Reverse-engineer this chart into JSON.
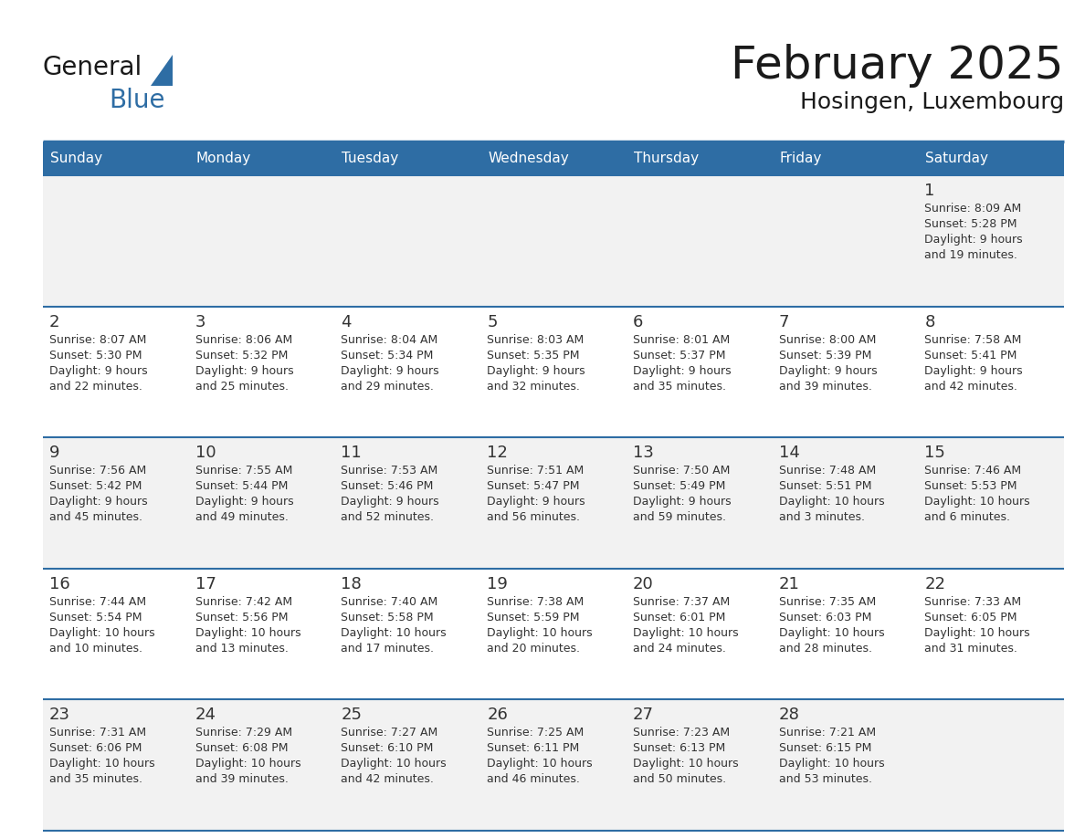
{
  "title": "February 2025",
  "subtitle": "Hosingen, Luxembourg",
  "days_of_week": [
    "Sunday",
    "Monday",
    "Tuesday",
    "Wednesday",
    "Thursday",
    "Friday",
    "Saturday"
  ],
  "header_bg": "#2E6DA4",
  "header_text": "#FFFFFF",
  "cell_bg_odd": "#F2F2F2",
  "cell_bg_even": "#FFFFFF",
  "day_number_color": "#333333",
  "text_color": "#333333",
  "line_color": "#2E6DA4",
  "calendar_data": [
    [
      null,
      null,
      null,
      null,
      null,
      null,
      1
    ],
    [
      2,
      3,
      4,
      5,
      6,
      7,
      8
    ],
    [
      9,
      10,
      11,
      12,
      13,
      14,
      15
    ],
    [
      16,
      17,
      18,
      19,
      20,
      21,
      22
    ],
    [
      23,
      24,
      25,
      26,
      27,
      28,
      null
    ]
  ],
  "cell_info": {
    "1": {
      "sunrise": "8:09 AM",
      "sunset": "5:28 PM",
      "daylight_h": "9 hours",
      "daylight_m": "19 minutes."
    },
    "2": {
      "sunrise": "8:07 AM",
      "sunset": "5:30 PM",
      "daylight_h": "9 hours",
      "daylight_m": "22 minutes."
    },
    "3": {
      "sunrise": "8:06 AM",
      "sunset": "5:32 PM",
      "daylight_h": "9 hours",
      "daylight_m": "25 minutes."
    },
    "4": {
      "sunrise": "8:04 AM",
      "sunset": "5:34 PM",
      "daylight_h": "9 hours",
      "daylight_m": "29 minutes."
    },
    "5": {
      "sunrise": "8:03 AM",
      "sunset": "5:35 PM",
      "daylight_h": "9 hours",
      "daylight_m": "32 minutes."
    },
    "6": {
      "sunrise": "8:01 AM",
      "sunset": "5:37 PM",
      "daylight_h": "9 hours",
      "daylight_m": "35 minutes."
    },
    "7": {
      "sunrise": "8:00 AM",
      "sunset": "5:39 PM",
      "daylight_h": "9 hours",
      "daylight_m": "39 minutes."
    },
    "8": {
      "sunrise": "7:58 AM",
      "sunset": "5:41 PM",
      "daylight_h": "9 hours",
      "daylight_m": "42 minutes."
    },
    "9": {
      "sunrise": "7:56 AM",
      "sunset": "5:42 PM",
      "daylight_h": "9 hours",
      "daylight_m": "45 minutes."
    },
    "10": {
      "sunrise": "7:55 AM",
      "sunset": "5:44 PM",
      "daylight_h": "9 hours",
      "daylight_m": "49 minutes."
    },
    "11": {
      "sunrise": "7:53 AM",
      "sunset": "5:46 PM",
      "daylight_h": "9 hours",
      "daylight_m": "52 minutes."
    },
    "12": {
      "sunrise": "7:51 AM",
      "sunset": "5:47 PM",
      "daylight_h": "9 hours",
      "daylight_m": "56 minutes."
    },
    "13": {
      "sunrise": "7:50 AM",
      "sunset": "5:49 PM",
      "daylight_h": "9 hours",
      "daylight_m": "59 minutes."
    },
    "14": {
      "sunrise": "7:48 AM",
      "sunset": "5:51 PM",
      "daylight_h": "10 hours",
      "daylight_m": "3 minutes."
    },
    "15": {
      "sunrise": "7:46 AM",
      "sunset": "5:53 PM",
      "daylight_h": "10 hours",
      "daylight_m": "6 minutes."
    },
    "16": {
      "sunrise": "7:44 AM",
      "sunset": "5:54 PM",
      "daylight_h": "10 hours",
      "daylight_m": "10 minutes."
    },
    "17": {
      "sunrise": "7:42 AM",
      "sunset": "5:56 PM",
      "daylight_h": "10 hours",
      "daylight_m": "13 minutes."
    },
    "18": {
      "sunrise": "7:40 AM",
      "sunset": "5:58 PM",
      "daylight_h": "10 hours",
      "daylight_m": "17 minutes."
    },
    "19": {
      "sunrise": "7:38 AM",
      "sunset": "5:59 PM",
      "daylight_h": "10 hours",
      "daylight_m": "20 minutes."
    },
    "20": {
      "sunrise": "7:37 AM",
      "sunset": "6:01 PM",
      "daylight_h": "10 hours",
      "daylight_m": "24 minutes."
    },
    "21": {
      "sunrise": "7:35 AM",
      "sunset": "6:03 PM",
      "daylight_h": "10 hours",
      "daylight_m": "28 minutes."
    },
    "22": {
      "sunrise": "7:33 AM",
      "sunset": "6:05 PM",
      "daylight_h": "10 hours",
      "daylight_m": "31 minutes."
    },
    "23": {
      "sunrise": "7:31 AM",
      "sunset": "6:06 PM",
      "daylight_h": "10 hours",
      "daylight_m": "35 minutes."
    },
    "24": {
      "sunrise": "7:29 AM",
      "sunset": "6:08 PM",
      "daylight_h": "10 hours",
      "daylight_m": "39 minutes."
    },
    "25": {
      "sunrise": "7:27 AM",
      "sunset": "6:10 PM",
      "daylight_h": "10 hours",
      "daylight_m": "42 minutes."
    },
    "26": {
      "sunrise": "7:25 AM",
      "sunset": "6:11 PM",
      "daylight_h": "10 hours",
      "daylight_m": "46 minutes."
    },
    "27": {
      "sunrise": "7:23 AM",
      "sunset": "6:13 PM",
      "daylight_h": "10 hours",
      "daylight_m": "50 minutes."
    },
    "28": {
      "sunrise": "7:21 AM",
      "sunset": "6:15 PM",
      "daylight_h": "10 hours",
      "daylight_m": "53 minutes."
    }
  },
  "logo_text1": "General",
  "logo_text2": "Blue",
  "figsize": [
    11.88,
    9.18
  ],
  "dpi": 100
}
